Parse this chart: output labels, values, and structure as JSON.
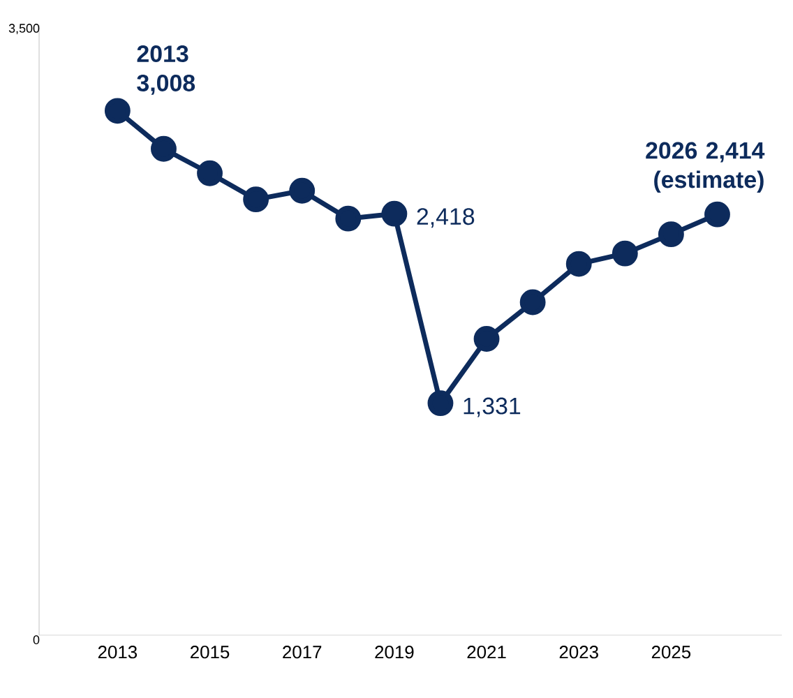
{
  "chart_data": {
    "type": "line",
    "x": [
      2013,
      2014,
      2015,
      2016,
      2017,
      2018,
      2019,
      2020,
      2021,
      2022,
      2023,
      2024,
      2025,
      2026
    ],
    "series": [
      {
        "color": "#0d2b5c",
        "values": [
          3008,
          2790,
          2650,
          2500,
          2550,
          2390,
          2418,
          1331,
          1700,
          1910,
          2130,
          2190,
          2300,
          2414
        ]
      }
    ],
    "xlim": [
      2011.3,
      2027.4
    ],
    "xticks": [
      2013,
      2015,
      2017,
      2019,
      2021,
      2023,
      2025
    ],
    "ylim": [
      0,
      3500
    ],
    "yticks": [
      0,
      {
        "value": 3500,
        "label": "3,500"
      }
    ],
    "grid": false,
    "marker": "circle",
    "line_style": "solid",
    "annotations": [
      {
        "text": "2013 3,008",
        "x": 2013,
        "y": 3008
      },
      {
        "text": "2,418",
        "x": 2019,
        "y": 2418
      },
      {
        "text": "1,331",
        "x": 2020,
        "y": 1331
      },
      {
        "text": "2026 2,414 (estimate)",
        "x": 2026,
        "y": 2414
      }
    ]
  }
}
